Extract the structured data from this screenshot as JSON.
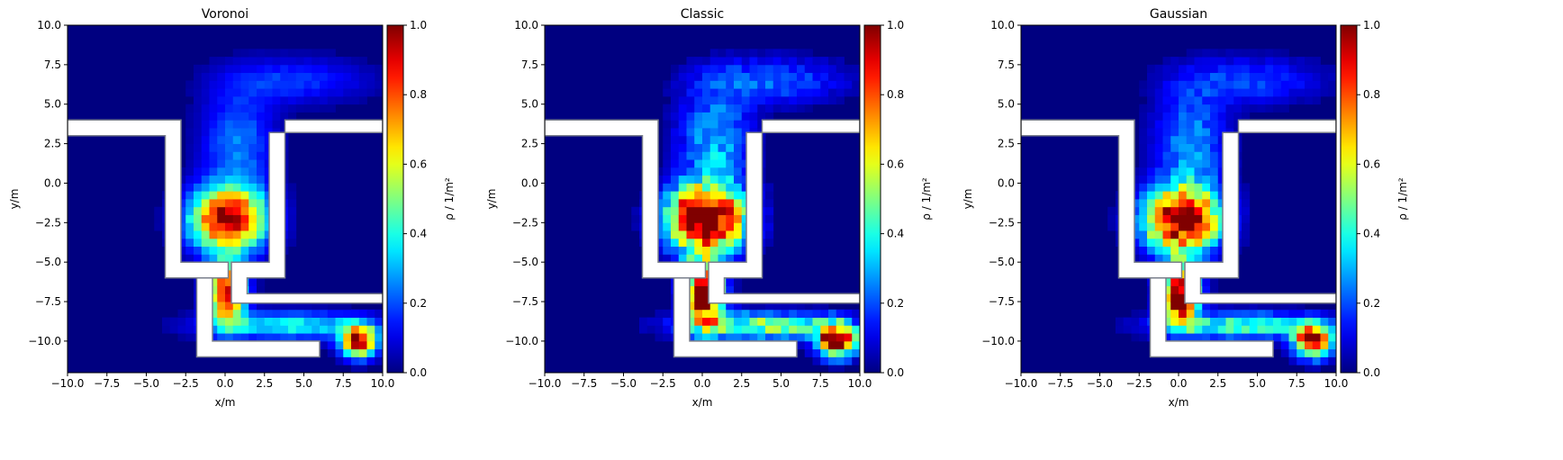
{
  "chart_data": [
    {
      "type": "heatmap",
      "title": "Voronoi",
      "xlabel": "x/m",
      "ylabel": "y/m",
      "xlim": [
        -10,
        10
      ],
      "ylim": [
        -12,
        10
      ],
      "xticks": [
        "−10.0",
        "−7.5",
        "−5.0",
        "−2.5",
        "0.0",
        "2.5",
        "5.0",
        "7.5",
        "10.0"
      ],
      "yticks": [
        "10.0",
        "7.5",
        "5.0",
        "2.5",
        "0.0",
        "−2.5",
        "−5.0",
        "−7.5",
        "−10.0"
      ],
      "colorbar": {
        "label": "ρ / 1/m²",
        "range": [
          0,
          1
        ],
        "ticks": [
          "0.0",
          "0.2",
          "0.4",
          "0.6",
          "0.8",
          "1.0"
        ],
        "colormap": "jet"
      },
      "grid": false
    },
    {
      "type": "heatmap",
      "title": "Classic",
      "xlabel": "x/m",
      "ylabel": "y/m",
      "xlim": [
        -10,
        10
      ],
      "ylim": [
        -12,
        10
      ],
      "xticks": [
        "−10.0",
        "−7.5",
        "−5.0",
        "−2.5",
        "0.0",
        "2.5",
        "5.0",
        "7.5",
        "10.0"
      ],
      "yticks": [
        "10.0",
        "7.5",
        "5.0",
        "2.5",
        "0.0",
        "−2.5",
        "−5.0",
        "−7.5",
        "−10.0"
      ],
      "colorbar": {
        "label": "ρ / 1/m²",
        "range": [
          0,
          1
        ],
        "ticks": [
          "0.0",
          "0.2",
          "0.4",
          "0.6",
          "0.8",
          "1.0"
        ],
        "colormap": "jet"
      },
      "grid": false
    },
    {
      "type": "heatmap",
      "title": "Gaussian",
      "xlabel": "x/m",
      "ylabel": "y/m",
      "xlim": [
        -10,
        10
      ],
      "ylim": [
        -12,
        10
      ],
      "xticks": [
        "−10.0",
        "−7.5",
        "−5.0",
        "−2.5",
        "0.0",
        "2.5",
        "5.0",
        "7.5",
        "10.0"
      ],
      "yticks": [
        "10.0",
        "7.5",
        "5.0",
        "2.5",
        "0.0",
        "−2.5",
        "−5.0",
        "−7.5",
        "−10.0"
      ],
      "colorbar": {
        "label": "ρ / 1/m²",
        "range": [
          0,
          1
        ],
        "ticks": [
          "0.0",
          "0.2",
          "0.4",
          "0.6",
          "0.8",
          "1.0"
        ],
        "colormap": "jet"
      },
      "grid": false
    }
  ],
  "walls": [
    [
      [
        -10,
        4
      ],
      [
        -2.8,
        4
      ],
      [
        -2.8,
        -5
      ],
      [
        0.2,
        -5
      ],
      [
        0.2,
        -6
      ],
      [
        -3.8,
        -6
      ],
      [
        -3.8,
        3
      ],
      [
        -10,
        3
      ]
    ],
    [
      [
        10,
        4
      ],
      [
        3.8,
        4
      ],
      [
        3.8,
        -6
      ],
      [
        1.4,
        -6
      ],
      [
        1.4,
        -7
      ],
      [
        10,
        -7
      ],
      [
        10,
        -7.6
      ],
      [
        0.4,
        -7.6
      ],
      [
        0.4,
        -5
      ],
      [
        2.8,
        -5
      ],
      [
        2.8,
        3.2
      ],
      [
        10,
        3.2
      ]
    ],
    [
      [
        -1.8,
        -6
      ],
      [
        -0.8,
        -6
      ],
      [
        -0.8,
        -10
      ],
      [
        6,
        -10
      ],
      [
        6,
        -11
      ],
      [
        -1.8,
        -11
      ]
    ]
  ],
  "density_blobs": [
    {
      "x": 0.2,
      "y": -2.3,
      "sx": 1.7,
      "sy": 1.4,
      "v": 1.0
    },
    {
      "x": 0.1,
      "y": -7.0,
      "sx": 0.8,
      "sy": 1.3,
      "v": 1.0
    },
    {
      "x": 8.5,
      "y": -10.0,
      "sx": 0.8,
      "sy": 0.7,
      "v": 0.95
    },
    {
      "x": 4.0,
      "y": -9.0,
      "sx": 3.6,
      "sy": 0.6,
      "v": 0.4
    },
    {
      "x": 0.8,
      "y": 2.5,
      "sx": 1.6,
      "sy": 2.4,
      "v": 0.25
    },
    {
      "x": 4.5,
      "y": 6.5,
      "sx": 3.2,
      "sy": 1.0,
      "v": 0.18
    }
  ]
}
